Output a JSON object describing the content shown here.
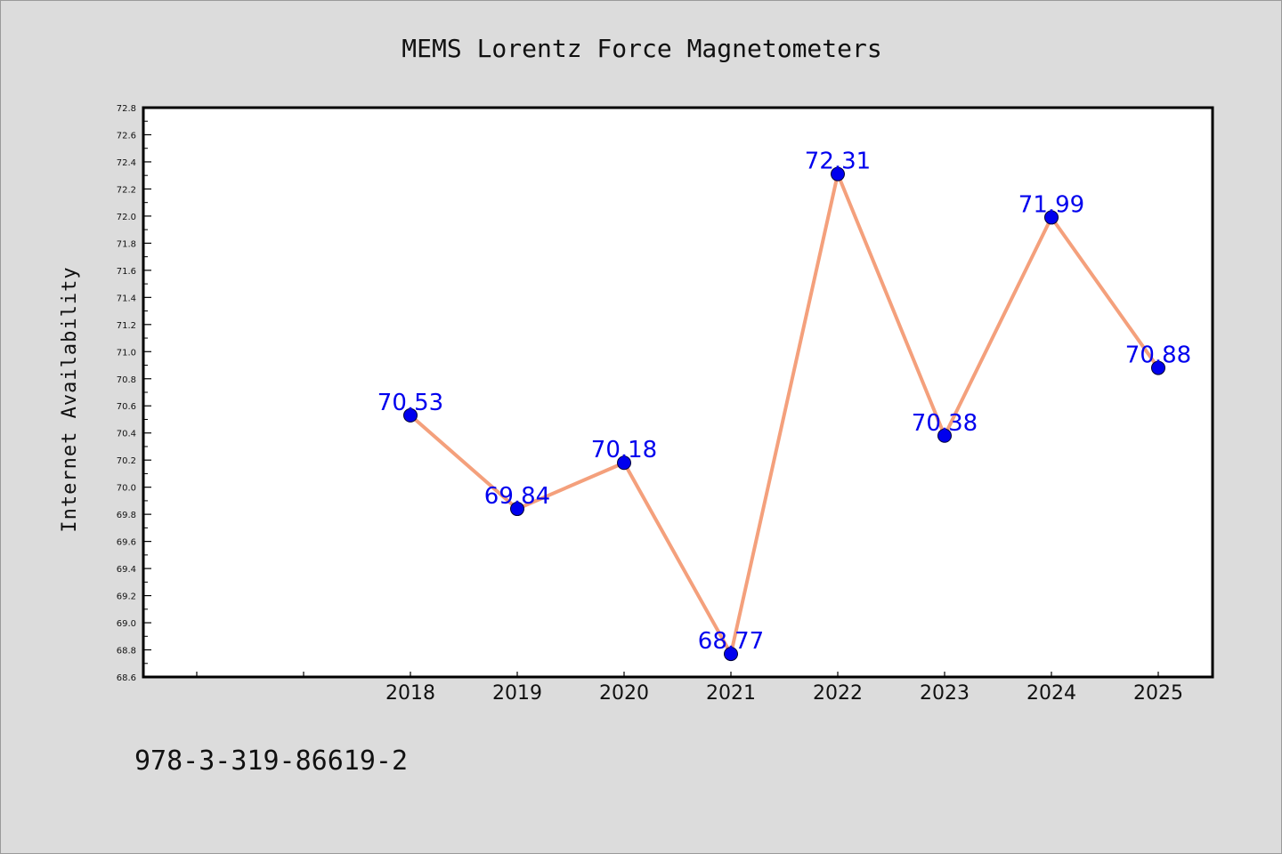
{
  "chart_data": {
    "type": "line",
    "title": "MEMS Lorentz Force Magnetometers",
    "ylabel": "Internet Availability",
    "xlabel": "",
    "x": [
      "2018",
      "2019",
      "2020",
      "2021",
      "2022",
      "2023",
      "2024",
      "2025"
    ],
    "y": [
      70.53,
      69.84,
      70.18,
      68.77,
      72.31,
      70.38,
      71.99,
      70.88
    ],
    "data_labels": [
      "70.53",
      "69.84",
      "70.18",
      "68.77",
      "72.31",
      "70.38",
      "71.99",
      "70.88"
    ],
    "ylim": [
      68.6,
      72.8
    ],
    "ytick_step": 0.2,
    "yticks": [
      "68.6",
      "68.8",
      "69.0",
      "69.2",
      "69.4",
      "69.6",
      "69.8",
      "70.0",
      "70.2",
      "70.4",
      "70.6",
      "70.8",
      "71.0",
      "71.2",
      "71.4",
      "71.6",
      "71.8",
      "72.0",
      "72.2",
      "72.4",
      "72.6",
      "72.8"
    ],
    "x_slots_before_data": 2,
    "grid": false,
    "legend": "none",
    "colors": {
      "line": "#f4a07c",
      "marker": "#0000ee",
      "data_label": "#0000ee",
      "plot_background": "#ffffff",
      "figure_background": "#dcdcdc",
      "axes_border": "#000000"
    }
  },
  "footer": {
    "isbn": "978-3-319-86619-2"
  }
}
